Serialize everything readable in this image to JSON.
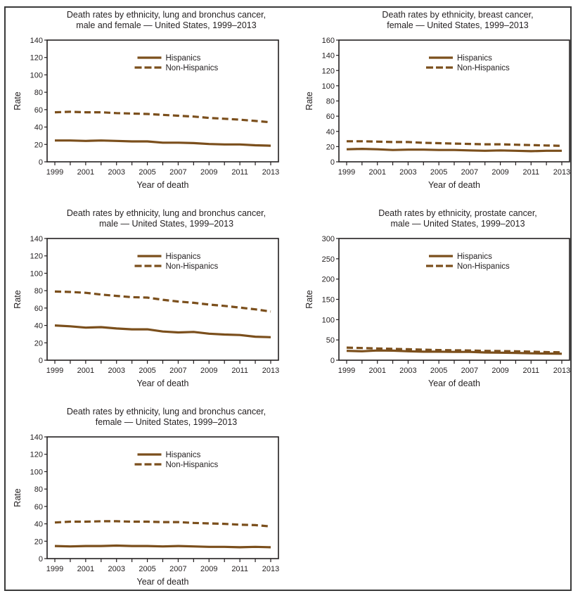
{
  "chart_data": [
    {
      "type": "line",
      "title": [
        "Death rates by ethnicity, lung and bronchus cancer,",
        "male and female — United States, 1999–2013"
      ],
      "xlabel": "Year of death",
      "ylabel": "Rate",
      "ylim": [
        0,
        140
      ],
      "yticks": [
        0,
        20,
        40,
        60,
        80,
        100,
        120,
        140
      ],
      "x": [
        1999,
        2000,
        2001,
        2002,
        2003,
        2004,
        2005,
        2006,
        2007,
        2008,
        2009,
        2010,
        2011,
        2012,
        2013
      ],
      "xtick_labels": [
        "1999",
        "2001",
        "2003",
        "2005",
        "2007",
        "2009",
        "2011",
        "2013"
      ],
      "legend_position": "top-center",
      "series": [
        {
          "name": "Hispanics",
          "style": "solid",
          "values": [
            24.5,
            24.5,
            24,
            24.5,
            24,
            23.5,
            23.5,
            22,
            22,
            21.5,
            20.5,
            20,
            20,
            19,
            18.5
          ]
        },
        {
          "name": "Non-Hispanics",
          "style": "dashed",
          "values": [
            57,
            57.5,
            57,
            57,
            56,
            55.5,
            55,
            54,
            53,
            52,
            50.5,
            49.5,
            48.5,
            47,
            45.5
          ]
        }
      ]
    },
    {
      "type": "line",
      "title": [
        "Death rates by ethnicity, breast cancer,",
        "female — United States, 1999–2013"
      ],
      "xlabel": "Year of death",
      "ylabel": "Rate",
      "ylim": [
        0,
        160
      ],
      "yticks": [
        0,
        20,
        40,
        60,
        80,
        100,
        120,
        140,
        160
      ],
      "x": [
        1999,
        2000,
        2001,
        2002,
        2003,
        2004,
        2005,
        2006,
        2007,
        2008,
        2009,
        2010,
        2011,
        2012,
        2013
      ],
      "xtick_labels": [
        "1999",
        "2001",
        "2003",
        "2005",
        "2007",
        "2009",
        "2011",
        "2013"
      ],
      "legend_position": "top-center",
      "series": [
        {
          "name": "Hispanics",
          "style": "solid",
          "values": [
            16.5,
            17,
            16.5,
            15.5,
            16,
            16,
            15.5,
            15.5,
            15,
            14.5,
            15,
            14.5,
            14,
            14.5,
            14.5
          ]
        },
        {
          "name": "Non-Hispanics",
          "style": "dashed",
          "values": [
            27,
            27,
            26.5,
            26,
            26,
            25,
            24.5,
            24,
            23.5,
            23,
            23,
            22.5,
            22,
            21.5,
            21
          ]
        }
      ]
    },
    {
      "type": "line",
      "title": [
        "Death rates by ethnicity, lung and bronchus cancer,",
        "male — United States, 1999–2013"
      ],
      "xlabel": "Year of death",
      "ylabel": "Rate",
      "ylim": [
        0,
        140
      ],
      "yticks": [
        0,
        20,
        40,
        60,
        80,
        100,
        120,
        140
      ],
      "x": [
        1999,
        2000,
        2001,
        2002,
        2003,
        2004,
        2005,
        2006,
        2007,
        2008,
        2009,
        2010,
        2011,
        2012,
        2013
      ],
      "xtick_labels": [
        "1999",
        "2001",
        "2003",
        "2005",
        "2007",
        "2009",
        "2011",
        "2013"
      ],
      "legend_position": "top-center",
      "series": [
        {
          "name": "Hispanics",
          "style": "solid",
          "values": [
            40,
            39,
            37.5,
            38,
            36.5,
            35.5,
            35.5,
            33,
            32,
            32.5,
            30.5,
            29.5,
            29,
            27,
            26.5
          ]
        },
        {
          "name": "Non-Hispanics",
          "style": "dashed",
          "values": [
            79,
            78.5,
            77.5,
            75.5,
            74,
            72.5,
            72,
            69.5,
            67.5,
            66,
            64,
            62.5,
            60.5,
            58.5,
            56
          ]
        }
      ]
    },
    {
      "type": "line",
      "title": [
        "Death rates by ethnicity, prostate cancer,",
        "male — United States, 1999–2013"
      ],
      "xlabel": "Year of death",
      "ylabel": "Rate",
      "ylim": [
        0,
        300
      ],
      "yticks": [
        0,
        50,
        100,
        150,
        200,
        250,
        300
      ],
      "x": [
        1999,
        2000,
        2001,
        2002,
        2003,
        2004,
        2005,
        2006,
        2007,
        2008,
        2009,
        2010,
        2011,
        2012,
        2013
      ],
      "xtick_labels": [
        "1999",
        "2001",
        "2003",
        "2005",
        "2007",
        "2009",
        "2011",
        "2013"
      ],
      "legend_position": "top-center",
      "series": [
        {
          "name": "Hispanics",
          "style": "solid",
          "values": [
            23,
            22,
            24,
            23.5,
            22,
            21,
            21,
            20.5,
            20.5,
            19,
            18.5,
            18,
            17,
            16.5,
            16
          ]
        },
        {
          "name": "Non-Hispanics",
          "style": "dashed",
          "values": [
            31,
            30,
            29,
            28,
            27,
            26,
            25,
            24.5,
            24,
            23,
            22.5,
            22,
            21,
            20,
            19.5
          ]
        }
      ]
    },
    {
      "type": "line",
      "title": [
        "Death rates by ethnicity, lung and bronchus cancer,",
        "female — United States, 1999–2013"
      ],
      "xlabel": "Year of death",
      "ylabel": "Rate",
      "ylim": [
        0,
        140
      ],
      "yticks": [
        0,
        20,
        40,
        60,
        80,
        100,
        120,
        140
      ],
      "x": [
        1999,
        2000,
        2001,
        2002,
        2003,
        2004,
        2005,
        2006,
        2007,
        2008,
        2009,
        2010,
        2011,
        2012,
        2013
      ],
      "xtick_labels": [
        "1999",
        "2001",
        "2003",
        "2005",
        "2007",
        "2009",
        "2011",
        "2013"
      ],
      "legend_position": "top-center",
      "series": [
        {
          "name": "Hispanics",
          "style": "solid",
          "values": [
            14.5,
            14,
            14.5,
            14.5,
            15,
            14.5,
            14.5,
            14,
            14.5,
            14,
            13.5,
            13.5,
            13,
            13.5,
            13
          ]
        },
        {
          "name": "Non-Hispanics",
          "style": "dashed",
          "values": [
            41.5,
            42.5,
            42.5,
            43,
            43,
            42.5,
            42.5,
            42,
            42,
            41,
            40.5,
            40,
            39,
            38.5,
            37
          ]
        }
      ]
    }
  ],
  "colors": {
    "series_line": "#7b4f1c",
    "axis": "#231f20",
    "border": "#3a3a3a"
  }
}
